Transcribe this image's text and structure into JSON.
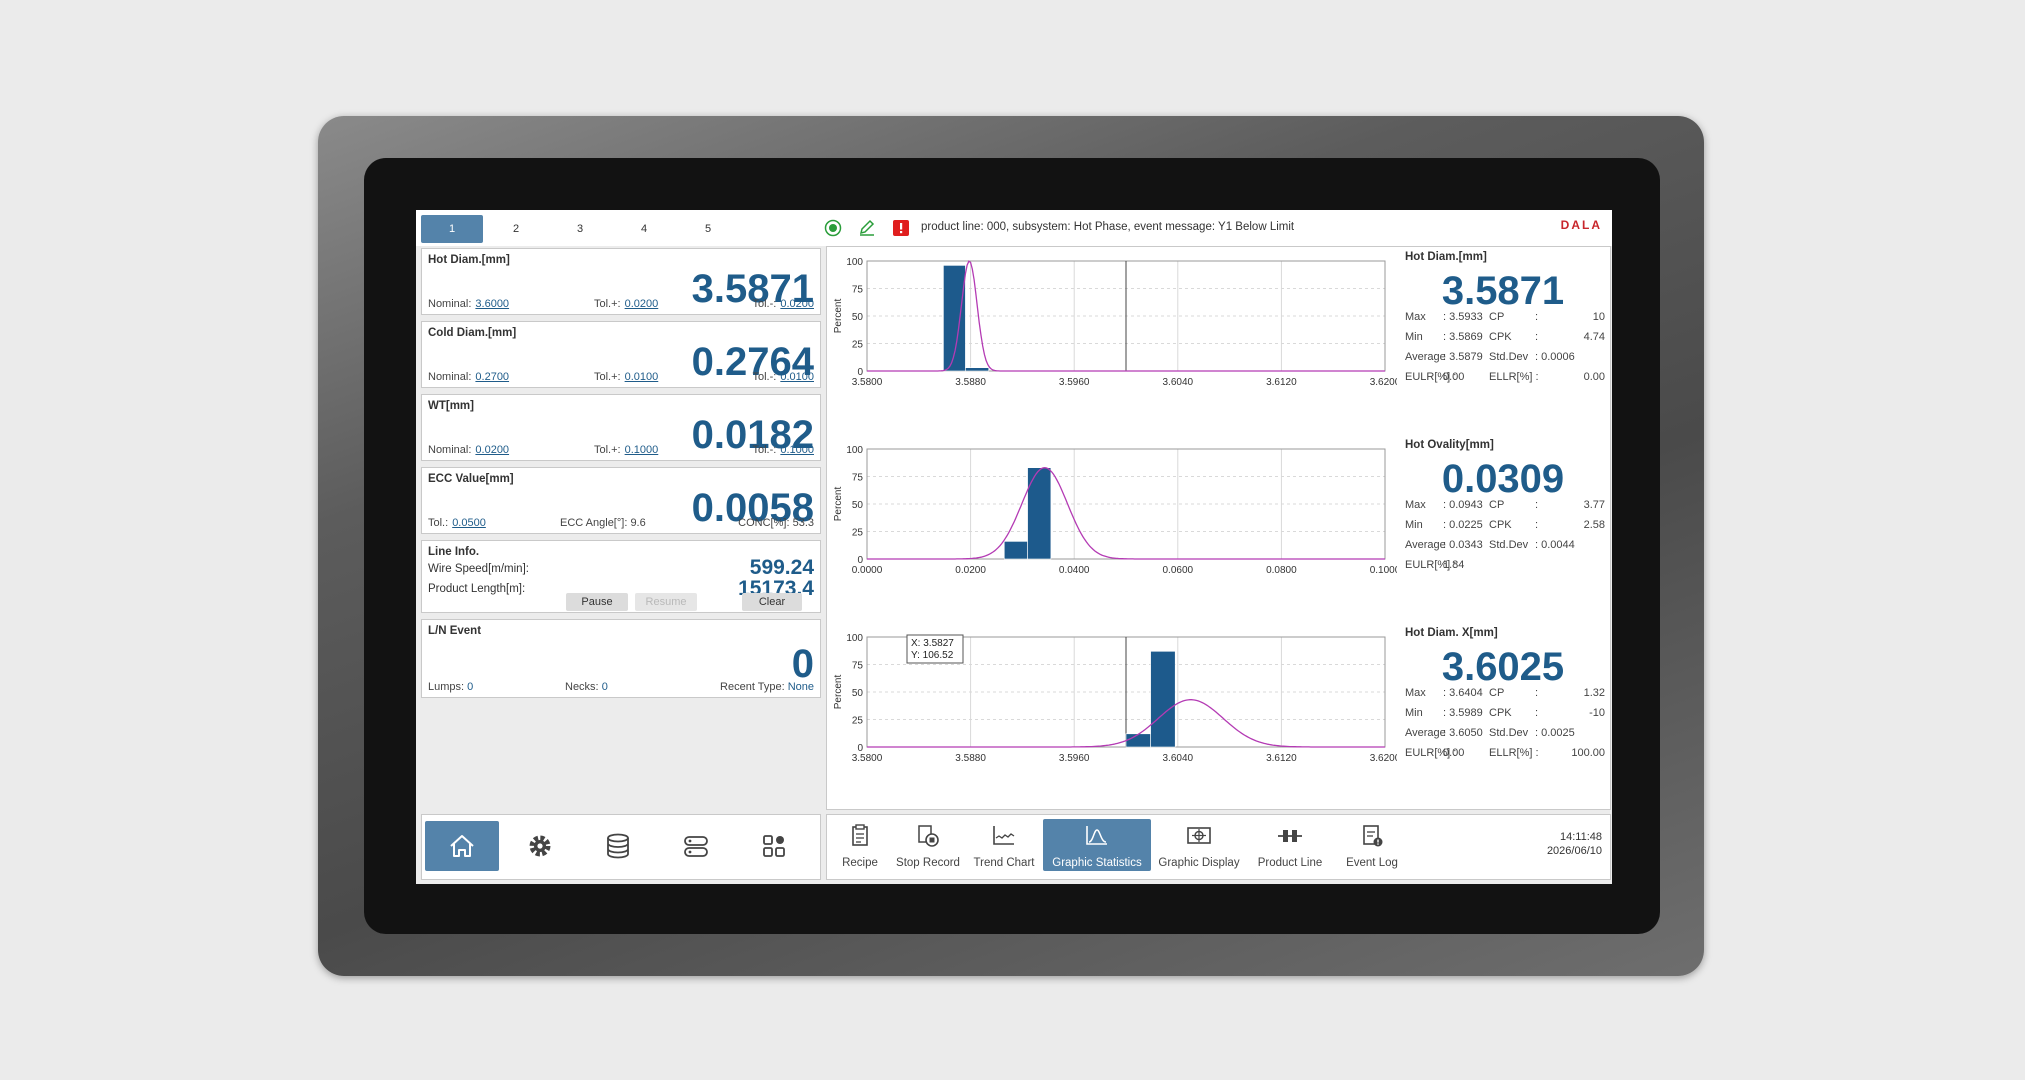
{
  "tabs": [
    "1",
    "2",
    "3",
    "4",
    "5"
  ],
  "active_tab": 0,
  "event_message": "product line: 000, subsystem: Hot Phase, event message: Y1 Below Limit",
  "logo": "DALA",
  "cards": [
    {
      "title": "Hot Diam.[mm]",
      "value": "3.5871",
      "f1_label": "Nominal:",
      "f1_value": "3.6000",
      "f2_label": "Tol.+:",
      "f2_value": "0.0200",
      "f3_label": "Tol.-:",
      "f3_value": "0.0200"
    },
    {
      "title": "Cold Diam.[mm]",
      "value": "0.2764",
      "f1_label": "Nominal:",
      "f1_value": "0.2700",
      "f2_label": "Tol.+:",
      "f2_value": "0.0100",
      "f3_label": "Tol.-:",
      "f3_value": "0.0100"
    },
    {
      "title": "WT[mm]",
      "value": "0.0182",
      "f1_label": "Nominal:",
      "f1_value": "0.0200",
      "f2_label": "Tol.+:",
      "f2_value": "0.1000",
      "f3_label": "Tol.-:",
      "f3_value": "0.1000"
    },
    {
      "title": "ECC Value[mm]",
      "value": "0.0058",
      "f1_label": "Tol.:",
      "f1_value": "0.0500",
      "f2_label": "ECC Angle[°]:",
      "f2_value": "9.6",
      "f3_label": "CONC[%]:",
      "f3_value": "53.3"
    }
  ],
  "line_info": {
    "title": "Line Info.",
    "speed_label": "Wire Speed[m/min]:",
    "speed_value": "599.24",
    "length_label": "Product Length[m]:",
    "length_value": "15173.4",
    "pause": "Pause",
    "resume": "Resume",
    "clear": "Clear"
  },
  "ln_event": {
    "title": "L/N Event",
    "value": "0",
    "lumps_label": "Lumps:",
    "lumps_value": "0",
    "necks_label": "Necks:",
    "necks_value": "0",
    "recent_label": "Recent Type:",
    "recent_value": "None"
  },
  "stats": [
    {
      "title": "Hot Diam.[mm]",
      "value": "3.5871",
      "rows": [
        [
          "Max",
          ": 3.5933",
          "CP",
          ":",
          "10"
        ],
        [
          "Min",
          ": 3.5869",
          "CPK",
          ":",
          "4.74"
        ],
        [
          "Average",
          ": 3.5879",
          "Std.Dev",
          ": 0.0006",
          ""
        ],
        [
          "EULR[%] :",
          "0.00",
          "ELLR[%] :",
          "",
          "0.00"
        ]
      ]
    },
    {
      "title": "Hot Ovality[mm]",
      "value": "0.0309",
      "rows": [
        [
          "Max",
          ": 0.0943",
          "CP",
          ":",
          "3.77"
        ],
        [
          "Min",
          ": 0.0225",
          "CPK",
          ":",
          "2.58"
        ],
        [
          "Average",
          ": 0.0343",
          "Std.Dev",
          ": 0.0044",
          ""
        ],
        [
          "EULR[%] :",
          "1.84",
          "",
          "",
          ""
        ]
      ]
    },
    {
      "title": "Hot Diam. X[mm]",
      "value": "3.6025",
      "rows": [
        [
          "Max",
          ": 3.6404",
          "CP",
          ":",
          "1.32"
        ],
        [
          "Min",
          ": 3.5989",
          "CPK",
          ":",
          "-10"
        ],
        [
          "Average",
          ": 3.6050",
          "Std.Dev",
          ": 0.0025",
          ""
        ],
        [
          "EULR[%] :",
          "0.00",
          "ELLR[%] :",
          "",
          "100.00"
        ]
      ]
    }
  ],
  "chart_data": [
    {
      "type": "bar",
      "ylabel": "Percent",
      "ylim": [
        0,
        100
      ],
      "yticks": [
        "0",
        "25",
        "50",
        "75",
        "100"
      ],
      "xlim": [
        3.58,
        3.62
      ],
      "xticks": [
        "3.5800",
        "3.5880",
        "3.5960",
        "3.6040",
        "3.6120",
        "3.6200"
      ],
      "bars": [
        {
          "x0": 3.5859,
          "x1": 3.5876,
          "y": 96
        },
        {
          "x0": 3.5876,
          "x1": 3.5894,
          "y": 3
        }
      ],
      "curve_mean": 3.5879,
      "curve_sd": 0.0006,
      "curve_peak": 100,
      "limit_line": 3.6
    },
    {
      "type": "bar",
      "ylabel": "Percent",
      "ylim": [
        0,
        100
      ],
      "yticks": [
        "0",
        "25",
        "50",
        "75",
        "100"
      ],
      "xlim": [
        0.0,
        0.1
      ],
      "xticks": [
        "0.0000",
        "0.0200",
        "0.0400",
        "0.0600",
        "0.0800",
        "0.1000"
      ],
      "bars": [
        {
          "x0": 0.0265,
          "x1": 0.031,
          "y": 16
        },
        {
          "x0": 0.031,
          "x1": 0.0355,
          "y": 83
        }
      ],
      "curve_mean": 0.0343,
      "curve_sd": 0.0044,
      "curve_peak": 83
    },
    {
      "type": "bar",
      "ylabel": "Percent",
      "ylim": [
        0,
        100
      ],
      "yticks": [
        "0",
        "25",
        "50",
        "75",
        "100"
      ],
      "xlim": [
        3.58,
        3.62
      ],
      "xticks": [
        "3.5800",
        "3.5880",
        "3.5960",
        "3.6040",
        "3.6120",
        "3.6200"
      ],
      "bars": [
        {
          "x0": 3.6,
          "x1": 3.6019,
          "y": 12
        },
        {
          "x0": 3.6019,
          "x1": 3.6038,
          "y": 87
        }
      ],
      "curve_mean": 3.605,
      "curve_sd": 0.0025,
      "curve_peak": 43,
      "limit_line": 3.6,
      "tooltip_x": "X: 3.5827",
      "tooltip_y": "Y: 106.52"
    }
  ],
  "toolbar": [
    "Recipe",
    "Stop Record",
    "Trend Chart",
    "Graphic Statistics",
    "Graphic Display",
    "Product Line",
    "Event Log"
  ],
  "toolbar_active": 3,
  "nav_icons": [
    "home-icon",
    "gear-icon",
    "database-icon",
    "server-icon",
    "apps-icon"
  ],
  "clock": {
    "time": "14:11:48",
    "date": "2026/06/10"
  }
}
